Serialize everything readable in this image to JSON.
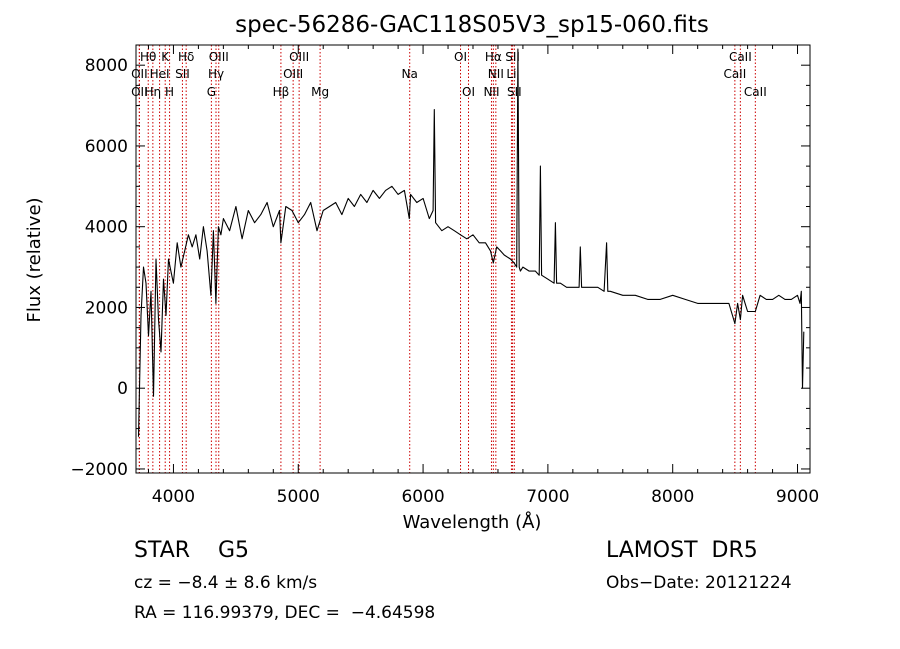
{
  "chart_data": {
    "type": "line",
    "title": "spec-56286-GAC118S05V3_sp15-060.fits",
    "xlabel": "Wavelength (Å)",
    "ylabel": "Flux (relative)",
    "xlim": [
      3700,
      9100
    ],
    "ylim": [
      -2100,
      8500
    ],
    "xticks": [
      4000,
      5000,
      6000,
      7000,
      8000,
      9000
    ],
    "xtick_labels": [
      "4000",
      "5000",
      "6000",
      "7000",
      "8000",
      "9000"
    ],
    "yticks": [
      -2000,
      0,
      2000,
      4000,
      6000,
      8000
    ],
    "ytick_labels": [
      "−2000",
      "0",
      "2000",
      "4000",
      "6000",
      "8000"
    ],
    "grid": false,
    "line_color": "#000000",
    "marker_color": "#cc0000",
    "spectrum": {
      "x": [
        3720,
        3740,
        3760,
        3780,
        3800,
        3820,
        3840,
        3860,
        3880,
        3900,
        3920,
        3940,
        3960,
        3980,
        4000,
        4030,
        4060,
        4090,
        4120,
        4150,
        4180,
        4210,
        4240,
        4270,
        4300,
        4320,
        4340,
        4360,
        4380,
        4400,
        4450,
        4500,
        4550,
        4600,
        4650,
        4700,
        4750,
        4800,
        4850,
        4861,
        4900,
        4950,
        5000,
        5050,
        5100,
        5150,
        5200,
        5250,
        5300,
        5350,
        5400,
        5450,
        5500,
        5550,
        5600,
        5650,
        5700,
        5750,
        5800,
        5850,
        5890,
        5900,
        5950,
        6000,
        6050,
        6080,
        6090,
        6100,
        6150,
        6200,
        6250,
        6300,
        6350,
        6400,
        6450,
        6500,
        6540,
        6563,
        6590,
        6620,
        6650,
        6700,
        6730,
        6750,
        6760,
        6770,
        6780,
        6800,
        6850,
        6900,
        6930,
        6940,
        6950,
        7000,
        7050,
        7060,
        7070,
        7100,
        7150,
        7200,
        7250,
        7260,
        7270,
        7300,
        7350,
        7400,
        7450,
        7470,
        7480,
        7500,
        7600,
        7700,
        7800,
        7900,
        8000,
        8100,
        8200,
        8300,
        8400,
        8450,
        8498,
        8520,
        8542,
        8560,
        8600,
        8662,
        8700,
        8750,
        8800,
        8850,
        8900,
        8950,
        9000,
        9020,
        9030,
        9040,
        9050
      ],
      "y": [
        -1200,
        1800,
        3000,
        2600,
        1300,
        2400,
        -200,
        3200,
        1700,
        900,
        2700,
        1800,
        3200,
        2900,
        2600,
        3600,
        3000,
        3400,
        3800,
        3500,
        3800,
        3200,
        4000,
        3400,
        2300,
        3900,
        2100,
        4000,
        3800,
        4200,
        3900,
        4500,
        3700,
        4400,
        4100,
        4300,
        4600,
        4000,
        4400,
        3600,
        4500,
        4400,
        4100,
        4300,
        4600,
        3900,
        4400,
        4500,
        4600,
        4300,
        4700,
        4500,
        4800,
        4600,
        4900,
        4700,
        4900,
        5000,
        4800,
        4900,
        4200,
        4800,
        4600,
        4700,
        4200,
        4400,
        6900,
        4100,
        3900,
        4000,
        3900,
        3800,
        3700,
        3800,
        3600,
        3600,
        3400,
        3100,
        3500,
        3400,
        3300,
        3200,
        3100,
        3000,
        8400,
        3000,
        2900,
        3000,
        2900,
        2900,
        2800,
        5500,
        2800,
        2700,
        2600,
        4100,
        2600,
        2600,
        2500,
        2500,
        2500,
        3500,
        2500,
        2500,
        2500,
        2500,
        2400,
        3600,
        2400,
        2400,
        2300,
        2300,
        2200,
        2200,
        2300,
        2200,
        2100,
        2100,
        2100,
        2100,
        1600,
        2100,
        1700,
        2300,
        1900,
        1900,
        2300,
        2200,
        2200,
        2300,
        2200,
        2200,
        2300,
        2100,
        2400,
        0,
        1400
      ]
    },
    "line_markers": [
      {
        "label": "Hθ",
        "x": 3798,
        "row": 0
      },
      {
        "label": "K",
        "x": 3934,
        "row": 0
      },
      {
        "label": "Hδ",
        "x": 4102,
        "row": 0
      },
      {
        "label": "OIII",
        "x": 4363,
        "row": 0
      },
      {
        "label": "OIII",
        "x": 5007,
        "row": 0
      },
      {
        "label": "OI",
        "x": 6300,
        "row": 0
      },
      {
        "label": "Hα",
        "x": 6563,
        "row": 0
      },
      {
        "label": "SII",
        "x": 6717,
        "row": 0
      },
      {
        "label": "CaII",
        "x": 8542,
        "row": 0
      },
      {
        "label": "OII",
        "x": 3727,
        "row": 1
      },
      {
        "label": "HeI",
        "x": 3889,
        "row": 1
      },
      {
        "label": "SII",
        "x": 4072,
        "row": 1
      },
      {
        "label": "Hγ",
        "x": 4341,
        "row": 1
      },
      {
        "label": "OIII",
        "x": 4959,
        "row": 1
      },
      {
        "label": "Na",
        "x": 5893,
        "row": 1
      },
      {
        "label": "NII",
        "x": 6583,
        "row": 1
      },
      {
        "label": "Li",
        "x": 6708,
        "row": 1
      },
      {
        "label": "CaII",
        "x": 8498,
        "row": 1
      },
      {
        "label": "OII",
        "x": 3727,
        "row": 2
      },
      {
        "label": "Hη",
        "x": 3835,
        "row": 2
      },
      {
        "label": "H",
        "x": 3969,
        "row": 2
      },
      {
        "label": "G",
        "x": 4304,
        "row": 2
      },
      {
        "label": "Hβ",
        "x": 4861,
        "row": 2
      },
      {
        "label": "Mg",
        "x": 5175,
        "row": 2
      },
      {
        "label": "OI",
        "x": 6364,
        "row": 2
      },
      {
        "label": "NII",
        "x": 6548,
        "row": 2
      },
      {
        "label": "SII",
        "x": 6731,
        "row": 2
      },
      {
        "label": "CaII",
        "x": 8662,
        "row": 2
      }
    ]
  },
  "info": {
    "star_class": "STAR    G5",
    "survey": "LAMOST  DR5",
    "velocity": "cz = −8.4 ± 8.6 km/s",
    "obs_date": "Obs−Date: 20121224",
    "coords": "RA = 116.99379, DEC =  −4.64598"
  }
}
